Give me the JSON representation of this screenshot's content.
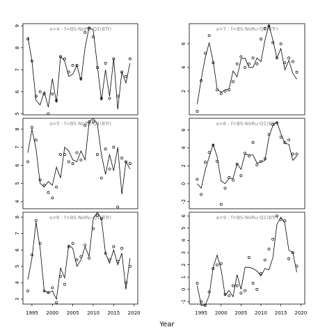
{
  "xlabel": "Year",
  "chart_data": [
    {
      "type": "line_points",
      "title": "a=4 : f=BS-NoRu-Q1(BTr)",
      "x": [
        1994,
        1995,
        1996,
        1997,
        1998,
        1999,
        2000,
        2001,
        2002,
        2003,
        2004,
        2005,
        2006,
        2007,
        2008,
        2009,
        2010,
        2011,
        2012,
        2013,
        2014,
        2015,
        2016,
        2017,
        2018,
        2019
      ],
      "series": [
        {
          "style": "line",
          "color": "#000000",
          "values": [
            8.5,
            7.4,
            5.6,
            5.4,
            6.0,
            5.3,
            6.6,
            5.5,
            7.6,
            7.4,
            6.7,
            6.8,
            7.2,
            6.5,
            8.0,
            8.95,
            8.8,
            7.2,
            5.6,
            7.0,
            5.8,
            7.5,
            5.2,
            6.9,
            6.4,
            7.3
          ]
        },
        {
          "style": "points",
          "color": "#000000",
          "values": [
            8.4,
            7.4,
            5.8,
            6.0,
            5.9,
            5.0,
            5.9,
            5.6,
            7.6,
            7.5,
            6.9,
            7.2,
            7.2,
            6.6,
            8.7,
            8.9,
            8.5,
            7.1,
            5.7,
            7.3,
            5.7,
            7.5,
            5.8,
            6.9,
            6.7,
            7.5
          ]
        }
      ],
      "xlim": [
        1992.8,
        2020.9
      ],
      "ylim": [
        4.95,
        9.1
      ],
      "yticks": [
        5,
        6,
        7,
        8,
        9
      ]
    },
    {
      "type": "line_points",
      "title": "a=7 : f=BS-NoRu-Q1(BTr)",
      "x": [
        1994,
        1995,
        1996,
        1997,
        1998,
        1999,
        2000,
        2001,
        2002,
        2003,
        2004,
        2005,
        2006,
        2007,
        2008,
        2009,
        2010,
        2011,
        2012,
        2013,
        2014,
        2015,
        2016,
        2017,
        2018,
        2019
      ],
      "series": [
        {
          "style": "line",
          "color": "#000000",
          "values": [
            0.9,
            3.0,
            4.8,
            6.1,
            4.5,
            2.2,
            1.9,
            2.1,
            2.2,
            3.7,
            3.2,
            4.7,
            4.8,
            4.0,
            4.0,
            4.8,
            4.5,
            6.3,
            7.6,
            6.3,
            4.8,
            5.6,
            3.8,
            4.6,
            3.5,
            3.0
          ]
        },
        {
          "style": "points",
          "color": "#000000",
          "values": [
            0.3,
            2.9,
            5.2,
            6.7,
            4.4,
            2.1,
            1.8,
            2.0,
            2.1,
            2.8,
            4.3,
            4.9,
            4.0,
            4.3,
            4.8,
            4.3,
            6.4,
            7.3,
            7.5,
            6.1,
            4.8,
            6.0,
            4.4,
            4.8,
            4.5,
            3.6
          ]
        }
      ],
      "xlim": [
        1992,
        2021
      ],
      "ylim": [
        0,
        7.7
      ],
      "yticks": [
        2,
        4,
        6
      ]
    },
    {
      "type": "line_points",
      "title": "a=5 : f=BS-NoRu-Q1(BTr)",
      "x": [
        1994,
        1995,
        1996,
        1997,
        1998,
        1999,
        2000,
        2001,
        2002,
        2003,
        2004,
        2005,
        2006,
        2007,
        2008,
        2009,
        2010,
        2011,
        2012,
        2013,
        2014,
        2015,
        2016,
        2017,
        2018,
        2019
      ],
      "series": [
        {
          "style": "line",
          "color": "#000000",
          "values": [
            6.7,
            8.0,
            6.9,
            5.0,
            4.8,
            5.1,
            4.9,
            5.9,
            5.3,
            7.0,
            6.8,
            6.3,
            6.2,
            6.8,
            6.3,
            8.4,
            8.6,
            8.3,
            6.6,
            5.5,
            6.6,
            5.7,
            7.0,
            4.4,
            6.2,
            5.8
          ]
        },
        {
          "style": "points",
          "color": "#000000",
          "values": [
            6.2,
            8.1,
            7.4,
            5.2,
            4.9,
            4.5,
            4.2,
            4.8,
            6.6,
            6.6,
            6.2,
            6.1,
            6.7,
            6.3,
            8.2,
            8.4,
            8.4,
            6.6,
            5.3,
            6.9,
            5.8,
            7.0,
            3.7,
            6.4,
            6.2,
            6.1
          ]
        }
      ],
      "xlim": [
        1992.8,
        2020.9
      ],
      "ylim": [
        3.6,
        8.6
      ],
      "yticks": [
        4,
        5,
        6,
        7,
        8
      ]
    },
    {
      "type": "line_points",
      "title": "a=8 : f=BS-NoRu-Q1(BTr)",
      "x": [
        1994,
        1995,
        1996,
        1997,
        1998,
        1999,
        2000,
        2001,
        2002,
        2003,
        2004,
        2005,
        2006,
        2007,
        2008,
        2009,
        2010,
        2011,
        2012,
        2013,
        2014,
        2015,
        2016,
        2017,
        2018,
        2019
      ],
      "series": [
        {
          "style": "line",
          "color": "#000000",
          "values": [
            0.0,
            -0.5,
            1.5,
            3.0,
            4.4,
            3.0,
            0.3,
            0.0,
            0.6,
            0.6,
            2.2,
            1.6,
            3.3,
            3.2,
            3.2,
            2.3,
            2.4,
            2.6,
            5.2,
            6.5,
            6.9,
            5.6,
            4.5,
            4.4,
            2.6,
            3.1
          ]
        },
        {
          "style": "points",
          "color": "#000000",
          "values": [
            0.5,
            -1.2,
            2.4,
            3.5,
            4.3,
            2.5,
            -2.3,
            -0.5,
            0.7,
            0.4,
            2.2,
            0.9,
            3.4,
            3.1,
            4.6,
            2.1,
            2.5,
            2.8,
            5.5,
            6.6,
            6.8,
            5.2,
            4.6,
            4.9,
            3.3,
            3.3
          ]
        }
      ],
      "xlim": [
        1992,
        2021
      ],
      "ylim": [
        -2.8,
        7.3
      ],
      "yticks": [
        -2,
        0,
        2,
        4,
        6
      ]
    },
    {
      "type": "line_points",
      "title": "a=6 : f=BS-NoRu-Q1(BTr)",
      "x": [
        1994,
        1995,
        1996,
        1997,
        1998,
        1999,
        2000,
        2001,
        2002,
        2003,
        2004,
        2005,
        2006,
        2007,
        2008,
        2009,
        2010,
        2011,
        2012,
        2013,
        2014,
        2015,
        2016,
        2017,
        2018,
        2019
      ],
      "series": [
        {
          "style": "line",
          "color": "#000000",
          "values": [
            4.2,
            5.5,
            7.7,
            6.1,
            3.5,
            3.4,
            3.5,
            3.0,
            4.9,
            4.3,
            6.3,
            6.1,
            5.0,
            5.4,
            6.2,
            5.6,
            7.9,
            8.3,
            7.9,
            5.8,
            5.2,
            6.0,
            5.1,
            5.8,
            3.6,
            5.5
          ]
        },
        {
          "style": "points",
          "color": "#000000",
          "values": [
            3.5,
            5.7,
            7.8,
            6.4,
            3.5,
            3.4,
            3.7,
            2.8,
            4.4,
            3.9,
            6.2,
            6.4,
            5.4,
            5.6,
            6.3,
            5.5,
            7.3,
            8.1,
            7.9,
            5.8,
            5.4,
            6.2,
            5.3,
            6.1,
            4.0,
            5.0
          ]
        }
      ],
      "xlim": [
        1992.8,
        2020.9
      ],
      "ylim": [
        2.7,
        8.3
      ],
      "yticks": [
        3,
        4,
        5,
        6,
        7,
        8
      ],
      "xticks": [
        1995,
        2000,
        2005,
        2010,
        2015,
        2020
      ]
    },
    {
      "type": "line_points",
      "title": "a=9 : f=BS-NoRu-Q1(BTr)",
      "x": [
        1994,
        1995,
        1996,
        1997,
        1998,
        1999,
        2000,
        2001,
        2002,
        2003,
        2004,
        2005,
        2006,
        2007,
        2008,
        2009,
        2010,
        2011,
        2012,
        2013,
        2014,
        2015,
        2016,
        2017,
        2018,
        2019
      ],
      "series": [
        {
          "style": "line",
          "color": "#000000",
          "values": [
            0.3,
            -1.3,
            -1.3,
            -0.5,
            1.8,
            2.8,
            1.6,
            -0.5,
            -0.1,
            -0.6,
            1.2,
            0.0,
            1.8,
            1.8,
            1.7,
            1.5,
            1.1,
            1.7,
            1.6,
            2.6,
            5.3,
            5.9,
            5.4,
            3.2,
            3.0,
            1.4
          ]
        },
        {
          "style": "points",
          "color": "#000000",
          "values": [
            0.5,
            -1.0,
            -1.3,
            -0.2,
            1.7,
            2.0,
            2.1,
            -0.4,
            -0.5,
            0.3,
            0.3,
            -0.3,
            -0.1,
            2.6,
            0.5,
            0.0,
            1.3,
            2.4,
            3.3,
            4.1,
            6.0,
            5.7,
            5.6,
            2.5,
            3.0,
            1.9
          ]
        }
      ],
      "xlim": [
        1992,
        2021
      ],
      "ylim": [
        -1.2,
        6.3
      ],
      "yticks": [
        -1,
        0,
        1,
        2,
        3,
        4,
        5,
        6
      ],
      "xticks": [
        1995,
        2000,
        2005,
        2010,
        2015,
        2020
      ]
    }
  ]
}
